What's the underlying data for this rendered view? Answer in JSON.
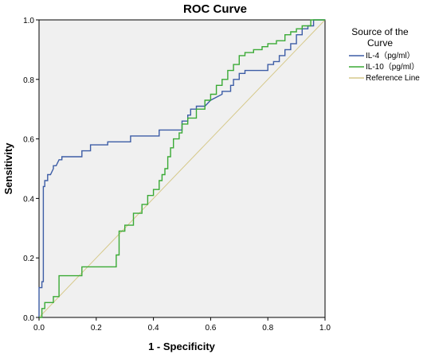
{
  "chart_data": {
    "type": "line",
    "title": "ROC Curve",
    "xlabel": "1 - Specificity",
    "ylabel": "Sensitivity",
    "xlim": [
      0,
      1
    ],
    "ylim": [
      0,
      1
    ],
    "xticks": [
      "0.0",
      "0.2",
      "0.4",
      "0.6",
      "0.8",
      "1.0"
    ],
    "yticks": [
      "0.0",
      "0.2",
      "0.4",
      "0.6",
      "0.8",
      "1.0"
    ],
    "grid": false,
    "plot_background": "#f0f0f0",
    "legend": {
      "title_lines": [
        "Source of the",
        "Curve"
      ],
      "placement": "right"
    },
    "series": [
      {
        "name": "IL-4（pg/ml）",
        "color": "#3d5da6",
        "x": [
          0.0,
          0.0,
          0.01,
          0.01,
          0.015,
          0.015,
          0.02,
          0.02,
          0.03,
          0.03,
          0.04,
          0.05,
          0.05,
          0.06,
          0.07,
          0.08,
          0.08,
          0.15,
          0.15,
          0.18,
          0.18,
          0.24,
          0.24,
          0.32,
          0.32,
          0.42,
          0.42,
          0.5,
          0.5,
          0.52,
          0.52,
          0.53,
          0.53,
          0.55,
          0.55,
          0.58,
          0.6,
          0.6,
          0.64,
          0.64,
          0.67,
          0.67,
          0.68,
          0.68,
          0.7,
          0.7,
          0.72,
          0.72,
          0.8,
          0.8,
          0.82,
          0.82,
          0.84,
          0.84,
          0.86,
          0.86,
          0.88,
          0.88,
          0.9,
          0.9,
          0.92,
          0.92,
          0.94,
          0.94,
          0.96,
          0.96,
          1.0
        ],
        "y": [
          0.0,
          0.1,
          0.1,
          0.12,
          0.12,
          0.44,
          0.44,
          0.46,
          0.46,
          0.48,
          0.48,
          0.5,
          0.51,
          0.51,
          0.53,
          0.53,
          0.54,
          0.54,
          0.56,
          0.56,
          0.58,
          0.58,
          0.59,
          0.59,
          0.61,
          0.61,
          0.63,
          0.63,
          0.66,
          0.66,
          0.68,
          0.68,
          0.7,
          0.7,
          0.71,
          0.71,
          0.73,
          0.73,
          0.75,
          0.76,
          0.76,
          0.78,
          0.78,
          0.8,
          0.8,
          0.82,
          0.82,
          0.83,
          0.83,
          0.85,
          0.85,
          0.86,
          0.86,
          0.88,
          0.88,
          0.9,
          0.9,
          0.92,
          0.92,
          0.95,
          0.95,
          0.97,
          0.97,
          0.98,
          0.98,
          1.0,
          1.0
        ]
      },
      {
        "name": "IL-10（pg/ml）",
        "color": "#3aaa35",
        "x": [
          0.0,
          0.01,
          0.01,
          0.02,
          0.02,
          0.05,
          0.05,
          0.07,
          0.07,
          0.15,
          0.15,
          0.27,
          0.27,
          0.28,
          0.28,
          0.3,
          0.3,
          0.33,
          0.33,
          0.36,
          0.36,
          0.38,
          0.38,
          0.4,
          0.4,
          0.42,
          0.42,
          0.43,
          0.43,
          0.44,
          0.44,
          0.45,
          0.45,
          0.46,
          0.46,
          0.47,
          0.47,
          0.49,
          0.49,
          0.5,
          0.5,
          0.52,
          0.52,
          0.55,
          0.55,
          0.58,
          0.58,
          0.6,
          0.6,
          0.62,
          0.62,
          0.64,
          0.64,
          0.66,
          0.66,
          0.68,
          0.68,
          0.7,
          0.7,
          0.72,
          0.72,
          0.75,
          0.75,
          0.78,
          0.78,
          0.8,
          0.8,
          0.83,
          0.83,
          0.86,
          0.86,
          0.88,
          0.88,
          0.9,
          0.9,
          0.92,
          0.92,
          0.95,
          0.95,
          1.0
        ],
        "y": [
          0.0,
          0.0,
          0.03,
          0.03,
          0.05,
          0.05,
          0.07,
          0.07,
          0.14,
          0.14,
          0.17,
          0.17,
          0.21,
          0.21,
          0.29,
          0.29,
          0.31,
          0.31,
          0.35,
          0.35,
          0.38,
          0.38,
          0.41,
          0.41,
          0.43,
          0.43,
          0.46,
          0.46,
          0.48,
          0.48,
          0.5,
          0.5,
          0.54,
          0.54,
          0.57,
          0.57,
          0.6,
          0.6,
          0.62,
          0.62,
          0.65,
          0.65,
          0.67,
          0.67,
          0.7,
          0.7,
          0.73,
          0.73,
          0.75,
          0.75,
          0.78,
          0.78,
          0.8,
          0.8,
          0.83,
          0.83,
          0.85,
          0.85,
          0.88,
          0.88,
          0.89,
          0.89,
          0.9,
          0.9,
          0.91,
          0.91,
          0.92,
          0.92,
          0.93,
          0.93,
          0.95,
          0.95,
          0.96,
          0.96,
          0.97,
          0.97,
          0.98,
          0.98,
          1.0,
          1.0
        ]
      },
      {
        "name": "Reference Line",
        "color": "#d6c98a",
        "x": [
          0,
          1
        ],
        "y": [
          0,
          1
        ]
      }
    ]
  }
}
